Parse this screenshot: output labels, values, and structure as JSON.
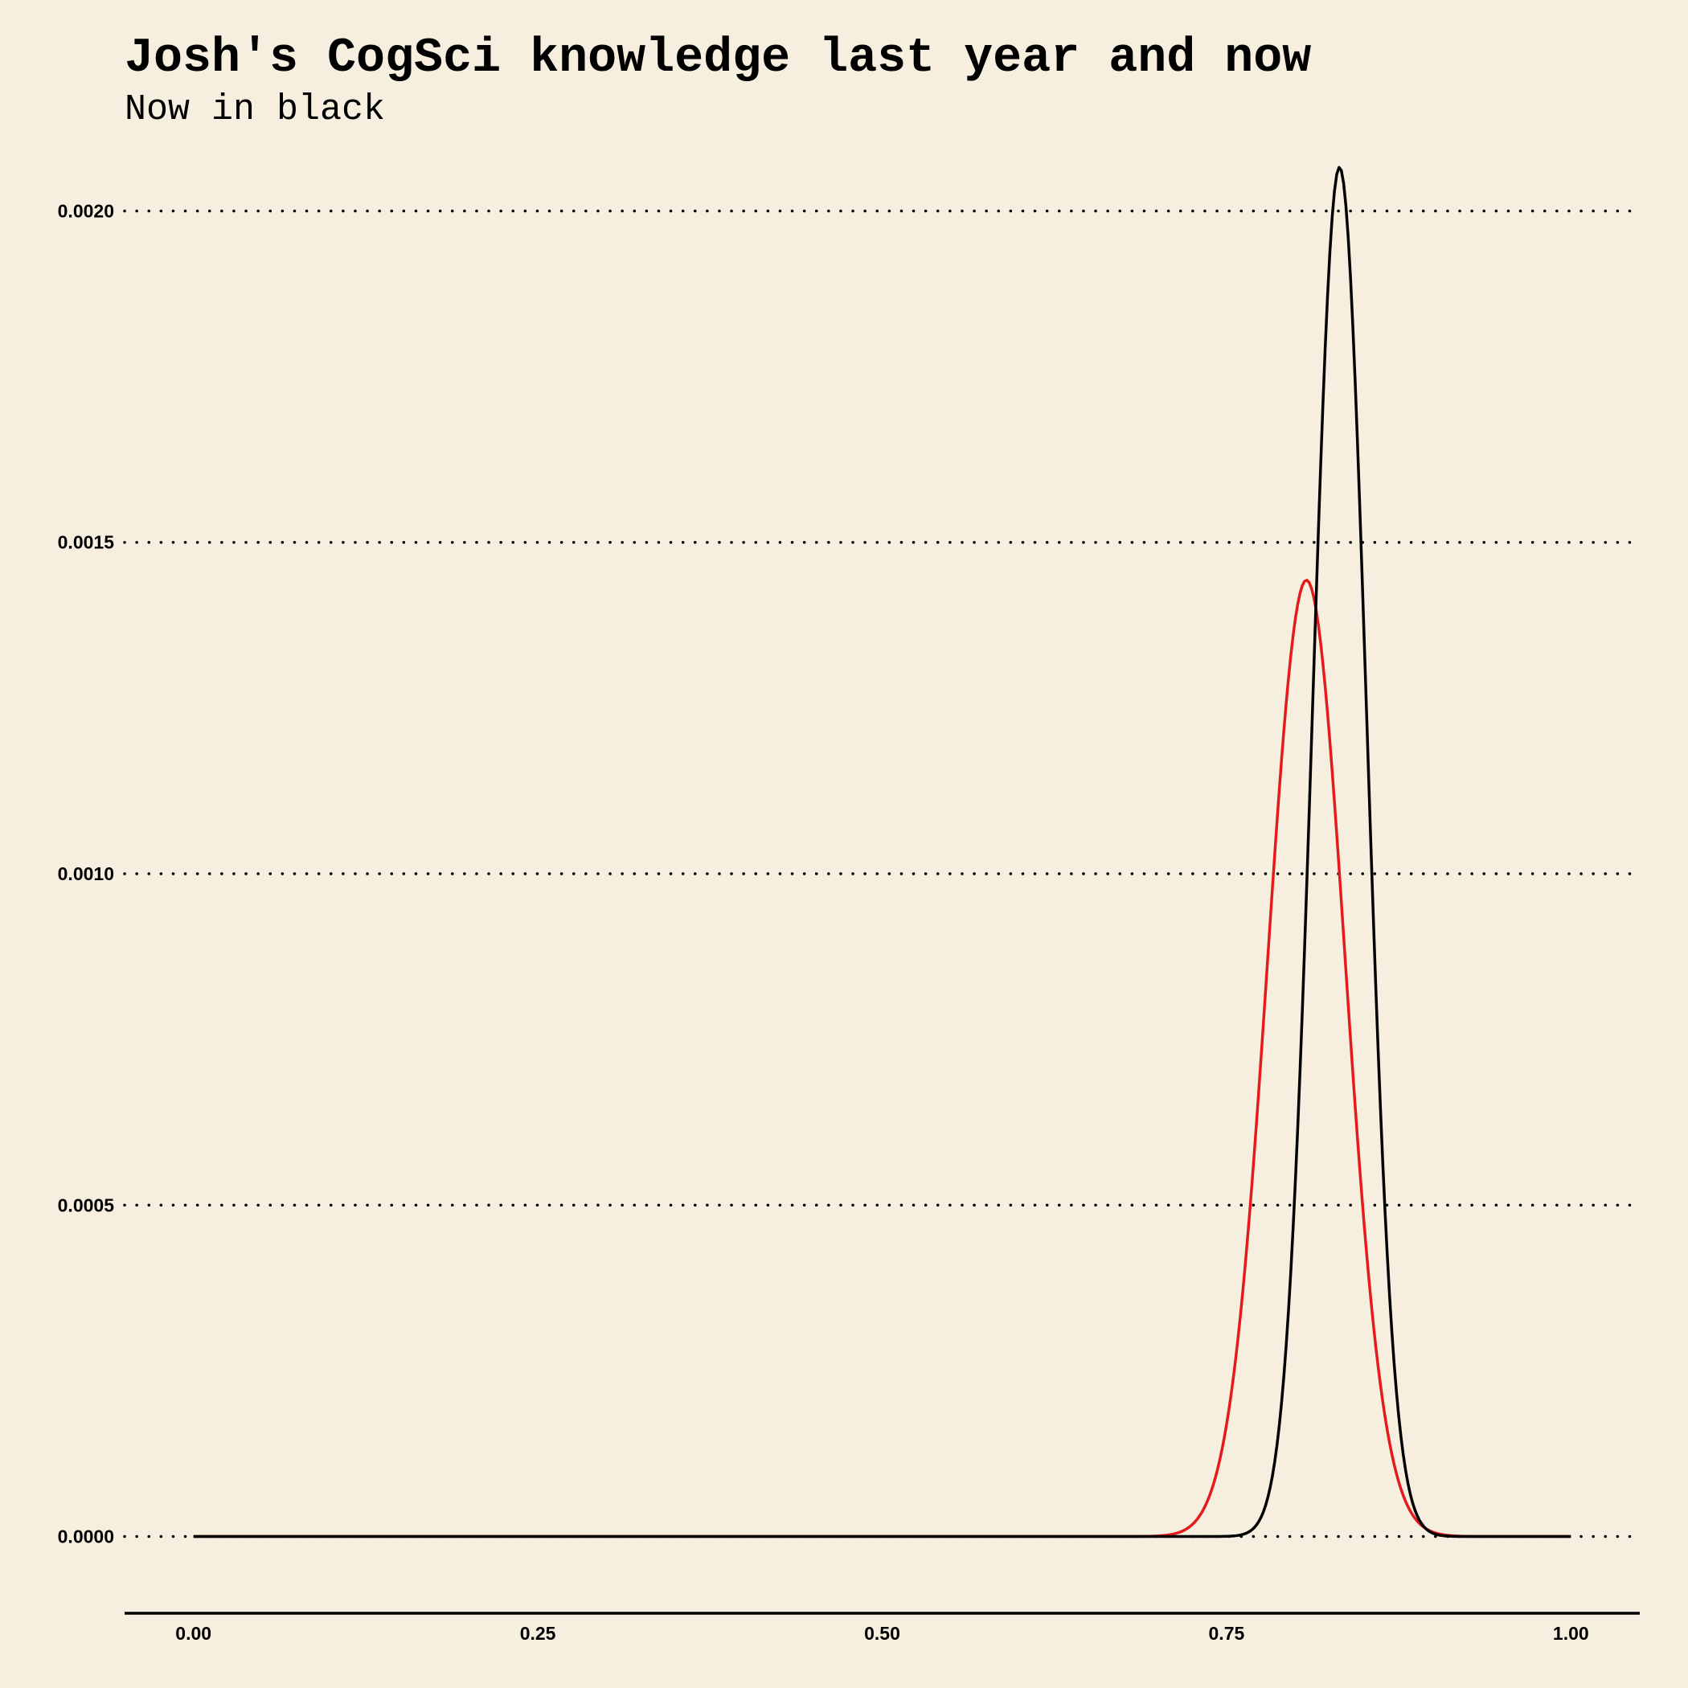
{
  "chart_data": {
    "type": "line",
    "title": "Josh's CogSci knowledge last year and now",
    "subtitle": "Now in black",
    "xlabel": "",
    "ylabel": "",
    "xlim": [
      -0.05,
      1.05
    ],
    "ylim": [
      -0.0001,
      0.0021
    ],
    "x_ticks": [
      0.0,
      0.25,
      0.5,
      0.75,
      1.0
    ],
    "x_tick_labels": [
      "0.00",
      "0.25",
      "0.50",
      "0.75",
      "1.00"
    ],
    "y_ticks": [
      0.0,
      0.0005,
      0.001,
      0.0015,
      0.002
    ],
    "y_tick_labels": [
      "0.0000",
      "0.0005",
      "0.0010",
      "0.0015",
      "0.0020"
    ],
    "grid": "horizontal-dotted",
    "series": [
      {
        "name": "Last year",
        "color": "#e41a1c",
        "peak_x": 0.808,
        "peak_y": 0.001443,
        "sd": 0.028
      },
      {
        "name": "Now",
        "color": "#000000",
        "peak_x": 0.832,
        "peak_y": 0.002066,
        "sd": 0.0195
      }
    ]
  }
}
